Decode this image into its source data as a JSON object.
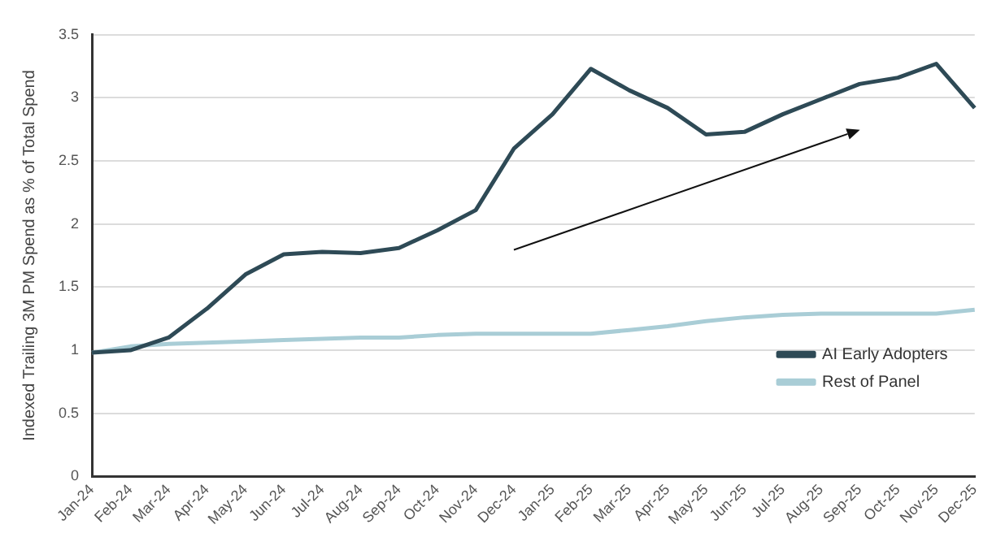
{
  "chart_data": {
    "type": "line",
    "ylabel": "Indexed Trailing 3M PM Spend as % of Total Spend",
    "categories": [
      "Jan-24",
      "Feb-24",
      "Mar-24",
      "Apr-24",
      "May-24",
      "Jun-24",
      "Jul-24",
      "Aug-24",
      "Sep-24",
      "Oct-24",
      "Nov-24",
      "Dec-24",
      "Jan-25",
      "Feb-25",
      "Mar-25",
      "Apr-25",
      "May-25",
      "Jun-25",
      "Jul-25",
      "Aug-25",
      "Sep-25",
      "Oct-25",
      "Nov-25",
      "Dec-25"
    ],
    "series": [
      {
        "name": "AI Early Adopters",
        "color": "#2e4a56",
        "values": [
          0.98,
          1.0,
          1.1,
          1.33,
          1.6,
          1.76,
          1.78,
          1.77,
          1.81,
          1.95,
          2.11,
          2.6,
          2.87,
          3.23,
          3.06,
          2.92,
          2.71,
          2.73,
          2.87,
          2.99,
          3.11,
          3.16,
          3.27,
          2.92
        ]
      },
      {
        "name": "Rest of Panel",
        "color": "#a9cdd6",
        "values": [
          0.98,
          1.03,
          1.05,
          1.06,
          1.07,
          1.08,
          1.09,
          1.1,
          1.1,
          1.12,
          1.13,
          1.13,
          1.13,
          1.13,
          1.16,
          1.19,
          1.23,
          1.26,
          1.28,
          1.29,
          1.29,
          1.29,
          1.29,
          1.32
        ]
      }
    ],
    "ylim": [
      0,
      3.5
    ],
    "yticks": [
      0,
      0.5,
      1,
      1.5,
      2,
      2.5,
      3,
      3.5
    ],
    "grid": "y",
    "legend": "bottom right",
    "marker": "none",
    "line_style": "solid"
  }
}
